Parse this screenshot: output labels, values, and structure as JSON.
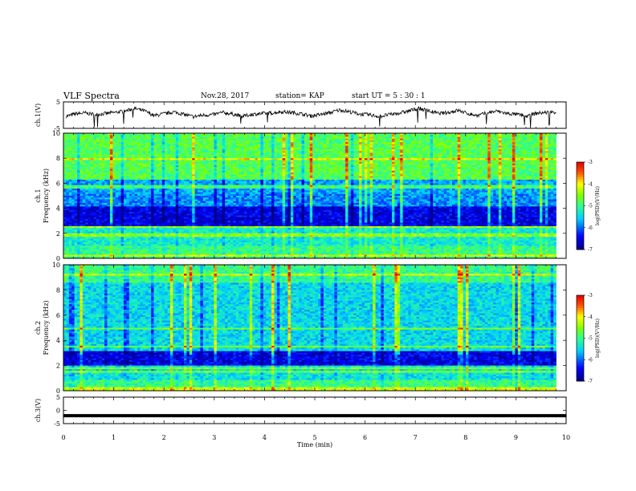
{
  "header": {
    "title": "VLF Spectra",
    "date": "Nov.28, 2017",
    "station": "station= KAP",
    "start": "start  UT =   5 : 30 : 1"
  },
  "chart_data": [
    {
      "type": "line",
      "ylabel": "ch.1(V)",
      "ylim": [
        -5,
        5
      ],
      "yticks": [
        "5",
        "-5"
      ],
      "xlim": [
        0,
        10
      ],
      "series": [
        {
          "values": [
            -0.5,
            0.5,
            0.8,
            0.2,
            0.6,
            1.0,
            1.5,
            2.5,
            1.6,
            -0.2,
            0.5,
            1.2,
            0.3,
            -0.6,
            0.0,
            0.2,
            1.0,
            0.4,
            -0.5,
            0.3,
            0.6,
            0.8,
            1.3,
            1.0,
            0.5,
            -0.3,
            0.2,
            1.0,
            2.0,
            1.2,
            0.4,
            0.1,
            -0.5,
            0.2,
            0.8,
            1.6,
            2.6,
            1.6,
            0.6,
            1.0,
            1.8,
            0.6,
            -0.2,
            0.9,
            1.5,
            0.6,
            0.3,
            -0.4,
            0.7,
            1.0,
            1.2
          ]
        }
      ]
    },
    {
      "type": "heatmap",
      "ylabel": "ch.1\nFrequency (kHz)",
      "ylim": [
        0,
        10
      ],
      "yticks": [
        "0",
        "2",
        "4",
        "6",
        "8",
        "10"
      ],
      "xlim": [
        0,
        10
      ],
      "colorbar": {
        "label": "log(PSD)(V²/Hz)",
        "range": [
          -7,
          -3
        ],
        "ticks": [
          "-3",
          "-4",
          "-5",
          "-6",
          "-7"
        ]
      }
    },
    {
      "type": "heatmap",
      "ylabel": "ch.2\nFrequency (kHz)",
      "ylim": [
        0,
        10
      ],
      "yticks": [
        "0",
        "2",
        "4",
        "6",
        "8",
        "10"
      ],
      "xlim": [
        0,
        10
      ],
      "colorbar": {
        "label": "log(PSD)(V²/Hz)",
        "range": [
          -7,
          -3
        ],
        "ticks": [
          "-3",
          "-4",
          "-5",
          "-6",
          "-7"
        ]
      }
    },
    {
      "type": "line",
      "ylabel": "ch.3(V)",
      "ylim": [
        -5,
        5
      ],
      "yticks": [
        "5",
        "0",
        "-5"
      ],
      "xlim": [
        0,
        10
      ],
      "xticks": [
        "0",
        "1",
        "2",
        "3",
        "4",
        "5",
        "6",
        "7",
        "8",
        "9",
        "10"
      ],
      "xlabel": "Time  (min)",
      "series": [
        {
          "values": [
            -2,
            -2
          ]
        }
      ]
    }
  ]
}
